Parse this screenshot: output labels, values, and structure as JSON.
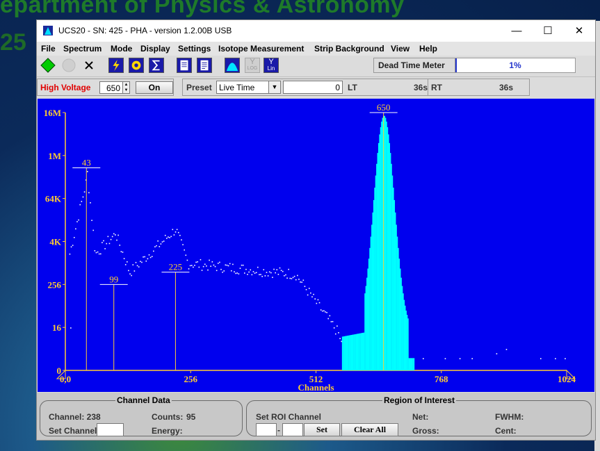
{
  "background": {
    "title": "epartment of Physics & Astronomy",
    "number": "25"
  },
  "window": {
    "title": "UCS20 - SN: 425 - PHA  - version 1.2.00B USB",
    "minimize": "—",
    "maximize": "☐",
    "close": "✕"
  },
  "menu": [
    "File",
    "Spectrum",
    "Mode",
    "Display",
    "Settings",
    "Isotope Measurement",
    "Strip Background",
    "View",
    "Help"
  ],
  "toolbar": {
    "icons": [
      "start-icon",
      "stop-icon",
      "clear-icon",
      "lightning-icon",
      "gear-icon",
      "sigma-icon",
      "report-icon",
      "report2-icon",
      "peak-icon",
      "log-icon",
      "lin-icon"
    ],
    "log_label": "LOG",
    "lin_label": "Lin",
    "dead_time_label": "Dead Time Meter",
    "dead_time_value": "1%",
    "dead_time_fraction": 0.01
  },
  "controls": {
    "hv_label": "High Voltage",
    "hv_value": "650",
    "hv_button": "On",
    "preset_label": "Preset",
    "preset_mode": "Live Time",
    "preset_value": "0",
    "lt_label": "LT",
    "lt_value": "36s",
    "rt_label": "RT",
    "rt_value": "36s"
  },
  "chart_data": {
    "type": "scatter",
    "xlabel": "Channels",
    "xticks": [
      "0,0",
      "256",
      "512",
      "768",
      "1024"
    ],
    "yticks": [
      "0",
      "16",
      "256",
      "4K",
      "64K",
      "1M",
      "16M"
    ],
    "xlim": [
      0,
      1024
    ],
    "markers": [
      {
        "label": "43",
        "channel": 43,
        "level": 330
      },
      {
        "label": "99",
        "channel": 99,
        "level": 140
      },
      {
        "label": "225",
        "channel": 225,
        "level": 160
      },
      {
        "label": "650",
        "channel": 650,
        "level": 420
      }
    ],
    "roi": {
      "start": 565,
      "end": 712
    },
    "background_color": "#0000ee",
    "point_color": "#ffffff",
    "roi_color": "#00ffff",
    "marker_color": "#ffcc33"
  },
  "channel_data": {
    "title": "Channel Data",
    "channel_label": "Channel: 238",
    "counts_label": "Counts:",
    "counts_value": "95",
    "set_channel_label": "Set Channel",
    "energy_label": "Energy:"
  },
  "roi": {
    "title": "Region of Interest",
    "set_roi_label": "Set ROI Channel",
    "dash": "-",
    "set_button": "Set",
    "clear_button": "Clear All",
    "net_label": "Net:",
    "gross_label": "Gross:",
    "fwhm_label": "FWHM:",
    "cent_label": "Cent:"
  }
}
